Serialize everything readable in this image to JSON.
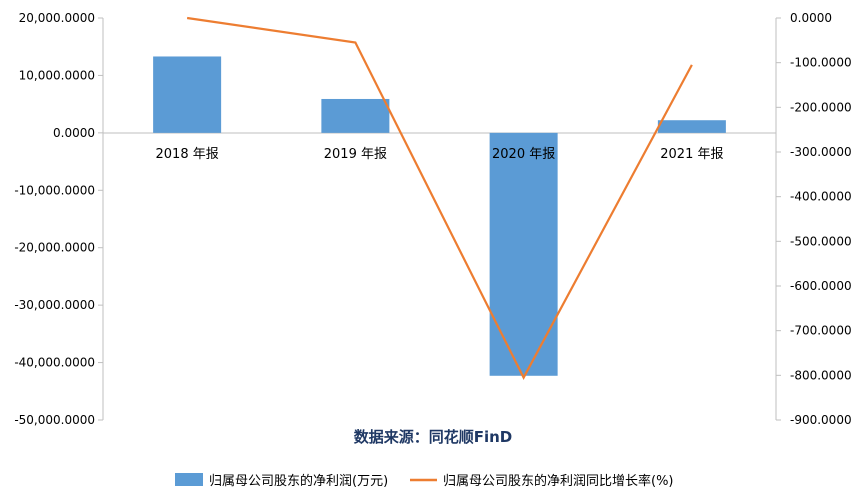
{
  "chart_data": {
    "type": "bar",
    "categories": [
      "2018 年报",
      "2019 年报",
      "2020 年报",
      "2021 年报"
    ],
    "series": [
      {
        "name": "归属母公司股东的净利润(万元)",
        "type": "bar",
        "axis": "left",
        "color": "#5b9bd5",
        "values": [
          13300,
          5900,
          -42300,
          2200
        ]
      },
      {
        "name": "归属母公司股东的净利润同比增长率(%)",
        "type": "line",
        "axis": "right",
        "color": "#ed7d31",
        "values": [
          0,
          -55,
          -805,
          -105
        ]
      }
    ],
    "y_left": {
      "lim": [
        -50000,
        20000
      ],
      "ticks": [
        20000,
        10000,
        0,
        -10000,
        -20000,
        -30000,
        -40000,
        -50000
      ],
      "tick_labels": [
        "20,000.0000",
        "10,000.0000",
        "0.0000",
        "-10,000.0000",
        "-20,000.0000",
        "-30,000.0000",
        "-40,000.0000",
        "-50,000.0000"
      ]
    },
    "y_right": {
      "lim": [
        -900,
        0
      ],
      "ticks": [
        0,
        -100,
        -200,
        -300,
        -400,
        -500,
        -600,
        -700,
        -800,
        -900
      ],
      "tick_labels": [
        "0.0000",
        "-100.0000",
        "-200.0000",
        "-300.0000",
        "-400.0000",
        "-500.0000",
        "-600.0000",
        "-700.0000",
        "-800.0000",
        "-900.0000"
      ]
    },
    "source_text": "数据来源：同花顺FinD",
    "legend_position": "bottom",
    "grid": false
  }
}
